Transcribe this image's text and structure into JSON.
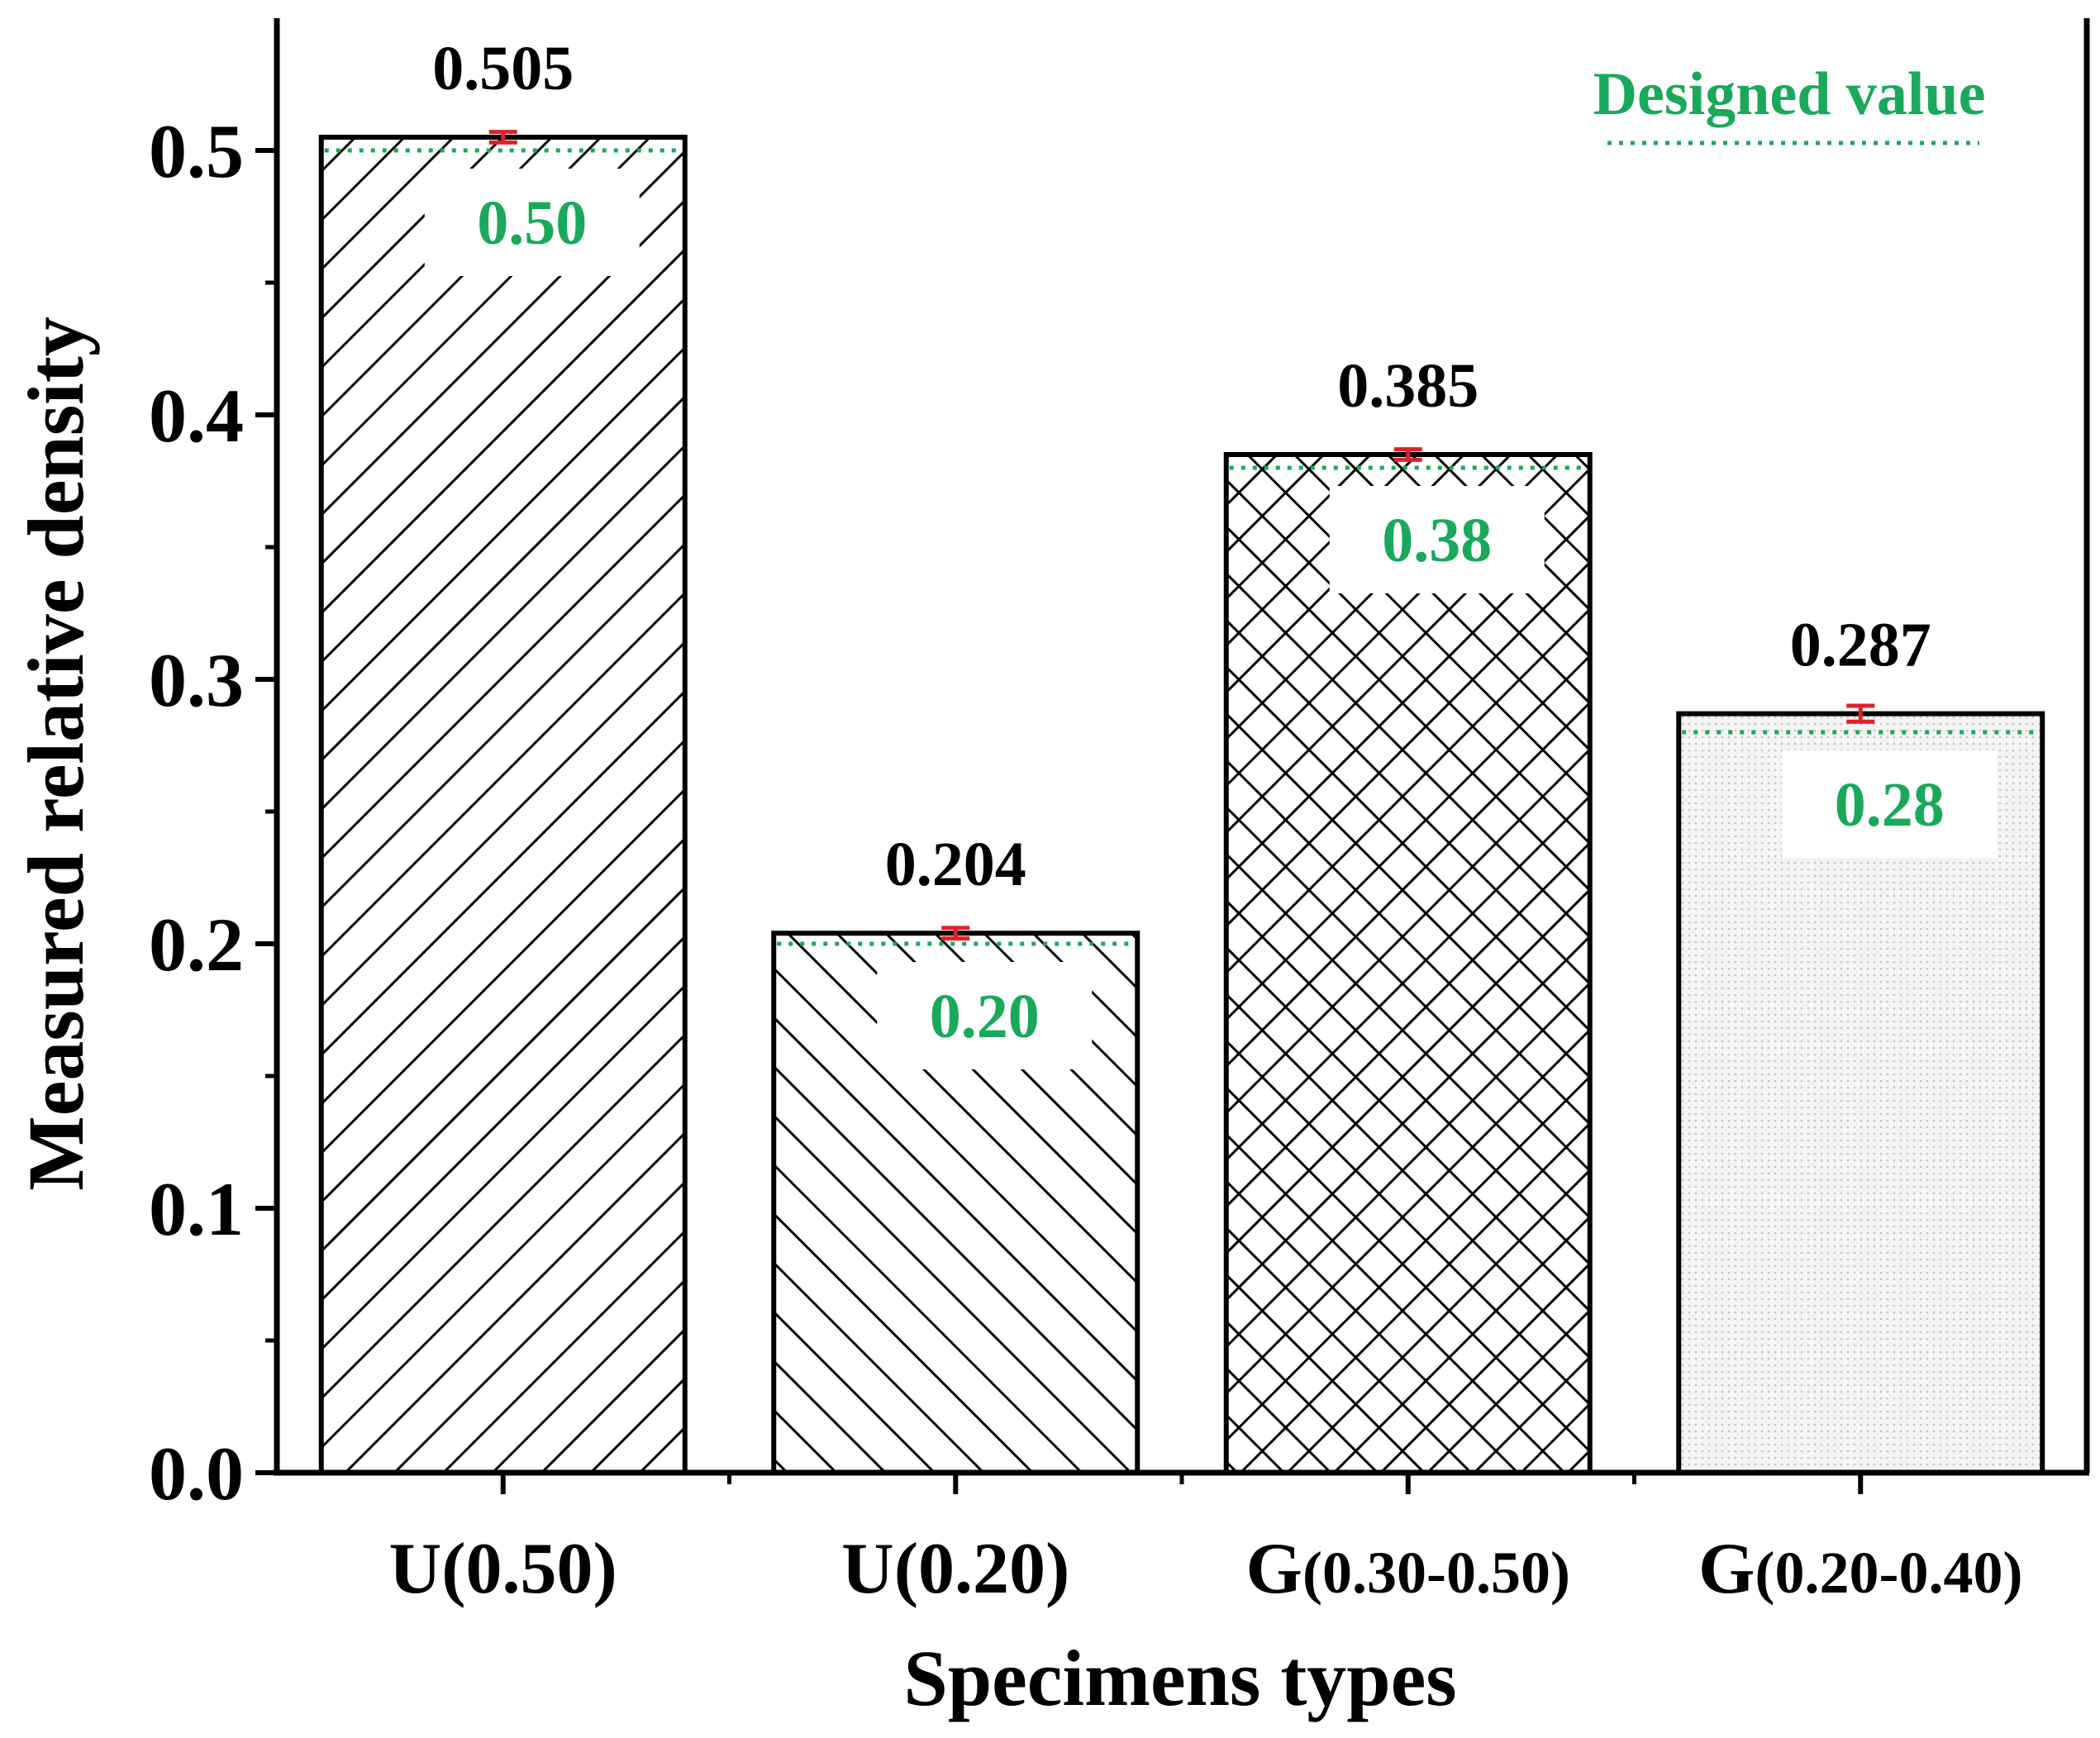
{
  "chart_data": {
    "type": "bar",
    "title": "",
    "xlabel": "Specimens types",
    "ylabel": "Measured relative density",
    "ylim": [
      0,
      0.55
    ],
    "yticks": [
      "0.0",
      "0.1",
      "0.2",
      "0.3",
      "0.4",
      "0.5"
    ],
    "ytick_values": [
      0,
      0.1,
      0.2,
      0.3,
      0.4,
      0.5
    ],
    "categories": [
      {
        "prefix": "U",
        "suffix": "(0.50)"
      },
      {
        "prefix": "U",
        "suffix": "(0.20)"
      },
      {
        "prefix": "G",
        "suffix": "(0.30-0.50)"
      },
      {
        "prefix": "G",
        "suffix": "(0.20-0.40)"
      }
    ],
    "values": [
      0.505,
      0.204,
      0.385,
      0.287
    ],
    "value_labels": [
      "0.505",
      "0.204",
      "0.385",
      "0.287"
    ],
    "errors": [
      0.002,
      0.002,
      0.002,
      0.003
    ],
    "designed_values": [
      0.5,
      0.2,
      0.38,
      0.28
    ],
    "designed_labels": [
      "0.50",
      "0.20",
      "0.38",
      "0.28"
    ],
    "patterns": [
      "hatch-forward",
      "hatch-backward",
      "crosshatch",
      "dots"
    ],
    "legend": {
      "label": "Designed value",
      "position": "top-right"
    },
    "colors": {
      "bar_edge": "#000000",
      "designed": "#1aa95a",
      "error": "#e0202a"
    }
  }
}
